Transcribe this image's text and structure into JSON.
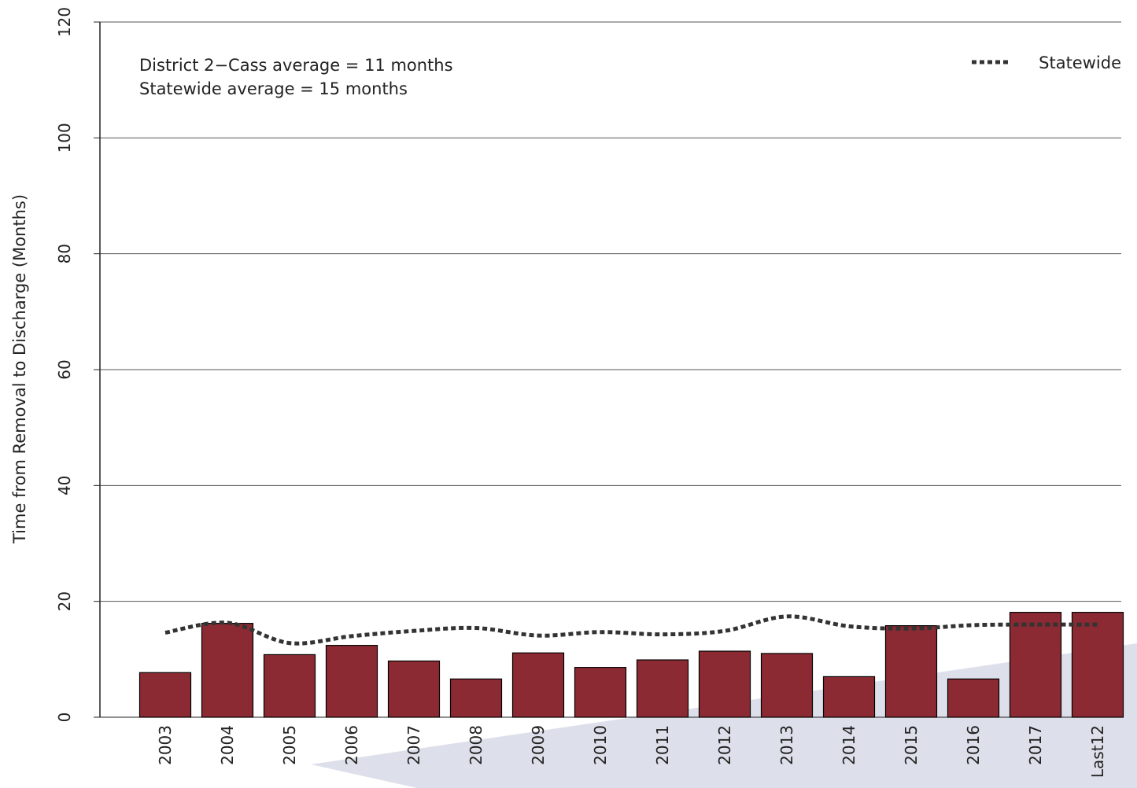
{
  "chart_data": {
    "type": "bar",
    "ylabel": "Time from Removal to Discharge (Months)",
    "xlabel": "",
    "ylim": [
      0,
      120
    ],
    "yticks": [
      0,
      20,
      40,
      60,
      80,
      100,
      120
    ],
    "grid": true,
    "categories": [
      "2003",
      "2004",
      "2005",
      "2006",
      "2007",
      "2008",
      "2009",
      "2010",
      "2011",
      "2012",
      "2013",
      "2014",
      "2015",
      "2016",
      "2017",
      "Last12"
    ],
    "series": [
      {
        "values": [
          7.7,
          16.2,
          10.8,
          12.4,
          9.7,
          6.6,
          11.1,
          8.6,
          9.9,
          11.4,
          11.0,
          7.0,
          15.8,
          6.6,
          18.1,
          18.1
        ],
        "color": "#8b2a33"
      },
      {
        "name": "Statewide",
        "type": "line",
        "style": "dotted",
        "values": [
          14.6,
          16.3,
          12.8,
          14.0,
          14.9,
          15.4,
          14.1,
          14.7,
          14.3,
          14.9,
          17.4,
          15.7,
          15.3,
          15.9,
          16.0,
          16.0
        ],
        "color": "#333333"
      }
    ],
    "annotations": [
      "District 2−Cass average = 11 months",
      "Statewide average = 15 months"
    ],
    "legend": {
      "position": "top-right",
      "entries": [
        "Statewide"
      ]
    }
  }
}
